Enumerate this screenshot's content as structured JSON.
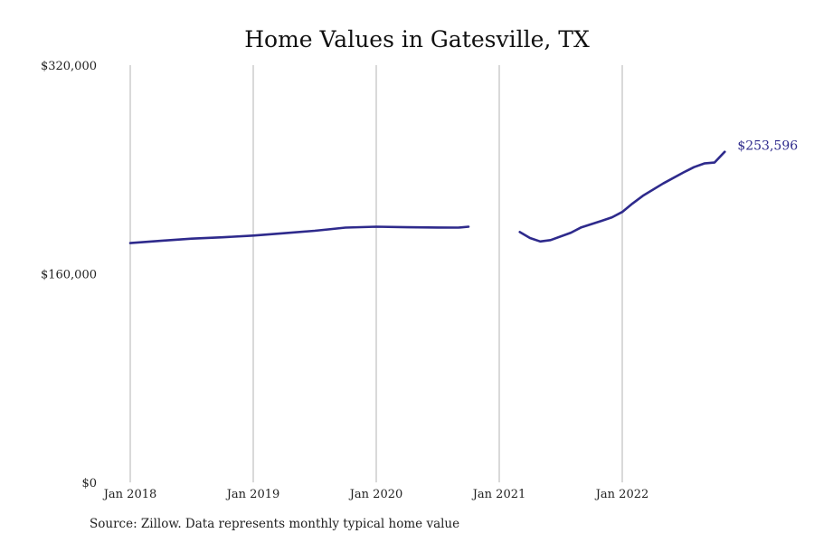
{
  "chart_data": {
    "type": "line",
    "title": "Home Values in Gatesville, TX",
    "xlabel": "",
    "ylabel": "",
    "x_ticks": [
      "Jan 2018",
      "Jan 2019",
      "Jan 2020",
      "Jan 2021",
      "Jan 2022"
    ],
    "y_ticks": [
      "$0",
      "$160,000",
      "$320,000"
    ],
    "ylim": [
      0,
      320000
    ],
    "xlim": [
      "2018-01",
      "2022-11"
    ],
    "grid": "vertical",
    "line_color": "#2e2a8c",
    "end_label": "$253,596",
    "series": [
      {
        "values": [
          {
            "x": "2018-01",
            "y": 183500
          },
          {
            "x": "2018-04",
            "y": 185300
          },
          {
            "x": "2018-07",
            "y": 186900
          },
          {
            "x": "2018-10",
            "y": 188000
          },
          {
            "x": "2019-01",
            "y": 189300
          },
          {
            "x": "2019-04",
            "y": 191100
          },
          {
            "x": "2019-07",
            "y": 193000
          },
          {
            "x": "2019-10",
            "y": 195400
          },
          {
            "x": "2020-01",
            "y": 196100
          },
          {
            "x": "2020-04",
            "y": 195700
          },
          {
            "x": "2020-07",
            "y": 195500
          },
          {
            "x": "2020-09",
            "y": 195400
          },
          {
            "x": "2020-10",
            "y": 196100
          },
          {
            "x": null,
            "y": null
          },
          {
            "x": "2021-03",
            "y": 192000
          },
          {
            "x": "2021-04",
            "y": 187400
          },
          {
            "x": "2021-05",
            "y": 184800
          },
          {
            "x": "2021-06",
            "y": 185800
          },
          {
            "x": "2021-08",
            "y": 191500
          },
          {
            "x": "2021-09",
            "y": 195600
          },
          {
            "x": "2021-11",
            "y": 200600
          },
          {
            "x": "2021-12",
            "y": 203300
          },
          {
            "x": "2022-01",
            "y": 207400
          },
          {
            "x": "2022-02",
            "y": 213900
          },
          {
            "x": "2022-03",
            "y": 219800
          },
          {
            "x": "2022-05",
            "y": 229300
          },
          {
            "x": "2022-07",
            "y": 237800
          },
          {
            "x": "2022-08",
            "y": 241800
          },
          {
            "x": "2022-09",
            "y": 244600
          },
          {
            "x": "2022-10",
            "y": 245300
          },
          {
            "x": "2022-11",
            "y": 253596
          }
        ]
      }
    ]
  },
  "source_text": "Source: Zillow. Data represents monthly typical home value"
}
